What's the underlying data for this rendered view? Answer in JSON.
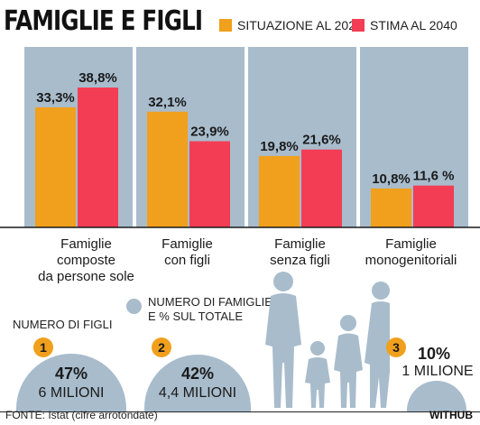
{
  "title": "FAMIGLIE E FIGLI",
  "colors": {
    "panel": "#a8bccc",
    "orange": "#f0a01c",
    "red": "#f23d55"
  },
  "chart_data": {
    "type": "bar",
    "categories": [
      "Famiglie composte da persone sole",
      "Famiglie con figli",
      "Famiglie senza figli",
      "Famiglie monogenitoriali"
    ],
    "category_lines": [
      [
        "Famiglie",
        "composte",
        "da persone sole"
      ],
      [
        "Famiglie",
        "con figli"
      ],
      [
        "Famiglie",
        "senza figli"
      ],
      [
        "Famiglie",
        "monogenitoriali"
      ]
    ],
    "series": [
      {
        "name": "SITUAZIONE AL 2021",
        "color": "#f0a01c",
        "values": [
          33.3,
          32.1,
          19.8,
          10.8
        ],
        "labels": [
          "33,3%",
          "32,1%",
          "19,8%",
          "10,8%"
        ]
      },
      {
        "name": "STIMA AL 2040",
        "color": "#f23d55",
        "values": [
          38.8,
          23.9,
          21.6,
          11.6
        ],
        "labels": [
          "38,8%",
          "23,9%",
          "21,6%",
          "11,6 %"
        ]
      }
    ],
    "ylim": [
      0,
      60
    ],
    "legend_position": "top-right"
  },
  "children_section": {
    "left_label": "NUMERO DI FIGLI",
    "legend_text": "NUMERO DI FAMIGLIE\nE % SUL TOTALE",
    "items": [
      {
        "number": "1",
        "percent": "47%",
        "count": "6 MILIONI"
      },
      {
        "number": "2",
        "percent": "42%",
        "count": "4,4 MILIONI"
      },
      {
        "number": "3",
        "percent": "10%",
        "count": "1 MILIONE"
      }
    ]
  },
  "source": "FONTE: Istat (cifre arrotondate)",
  "brand": "WITHUB"
}
